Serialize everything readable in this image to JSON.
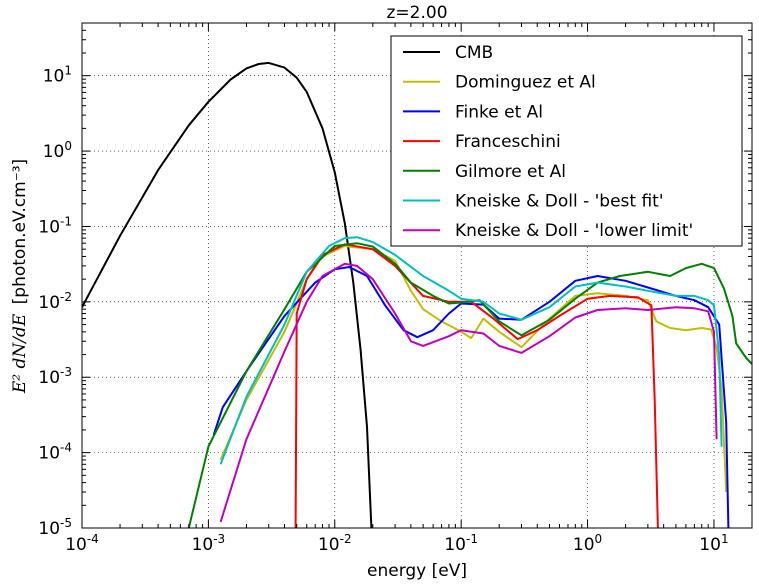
{
  "chart_data": {
    "type": "line",
    "title": "z=2.00",
    "xlabel": "energy [eV]",
    "ylabel_math": "E² dN/dE",
    "ylabel_unit": "[photon.eV.cm⁻³]",
    "xscale": "log",
    "yscale": "log",
    "xlim": [
      0.0001,
      20
    ],
    "ylim": [
      1e-05,
      50
    ],
    "grid": true,
    "legend_position": "top-right",
    "x_ticks": [
      {
        "base": "10",
        "exp": "-4",
        "value": 0.0001
      },
      {
        "base": "10",
        "exp": "-3",
        "value": 0.001
      },
      {
        "base": "10",
        "exp": "-2",
        "value": 0.01
      },
      {
        "base": "10",
        "exp": "-1",
        "value": 0.1
      },
      {
        "base": "10",
        "exp": "0",
        "value": 1
      },
      {
        "base": "10",
        "exp": "1",
        "value": 10
      }
    ],
    "y_ticks": [
      {
        "base": "10",
        "exp": "-5",
        "value": 1e-05
      },
      {
        "base": "10",
        "exp": "-4",
        "value": 0.0001
      },
      {
        "base": "10",
        "exp": "-3",
        "value": 0.001
      },
      {
        "base": "10",
        "exp": "-2",
        "value": 0.01
      },
      {
        "base": "10",
        "exp": "-1",
        "value": 0.1
      },
      {
        "base": "10",
        "exp": "0",
        "value": 1
      },
      {
        "base": "10",
        "exp": "1",
        "value": 10
      }
    ],
    "series": [
      {
        "name": "CMB",
        "color": "#000000",
        "points": [
          [
            0.0001,
            0.0085
          ],
          [
            0.0002,
            0.075
          ],
          [
            0.0004,
            0.56
          ],
          [
            0.0007,
            2.2
          ],
          [
            0.001,
            4.5
          ],
          [
            0.0015,
            8.9
          ],
          [
            0.002,
            12.5
          ],
          [
            0.0025,
            14.3
          ],
          [
            0.003,
            14.8
          ],
          [
            0.004,
            12.8
          ],
          [
            0.005,
            9.4
          ],
          [
            0.006,
            6.1
          ],
          [
            0.008,
            2.0
          ],
          [
            0.01,
            0.52
          ],
          [
            0.012,
            0.11
          ],
          [
            0.014,
            0.018
          ],
          [
            0.016,
            0.0023
          ],
          [
            0.018,
            0.00022
          ],
          [
            0.0195,
            1e-05
          ]
        ]
      },
      {
        "name": "Dominguez et Al",
        "color": "#bfbf00",
        "points": [
          [
            0.00125,
            8e-05
          ],
          [
            0.002,
            0.0005
          ],
          [
            0.004,
            0.004
          ],
          [
            0.006,
            0.02
          ],
          [
            0.008,
            0.04
          ],
          [
            0.012,
            0.055
          ],
          [
            0.02,
            0.05
          ],
          [
            0.03,
            0.035
          ],
          [
            0.04,
            0.014
          ],
          [
            0.05,
            0.008
          ],
          [
            0.07,
            0.0055
          ],
          [
            0.1,
            0.004
          ],
          [
            0.12,
            0.0033
          ],
          [
            0.15,
            0.006
          ],
          [
            0.2,
            0.004
          ],
          [
            0.3,
            0.0025
          ],
          [
            0.5,
            0.006
          ],
          [
            0.8,
            0.012
          ],
          [
            1.2,
            0.013
          ],
          [
            2,
            0.012
          ],
          [
            3,
            0.0105
          ],
          [
            3.5,
            0.0055
          ],
          [
            4.5,
            0.0045
          ],
          [
            6,
            0.0042
          ],
          [
            8,
            0.0045
          ],
          [
            9.5,
            0.0043
          ],
          [
            10.5,
            0.0025
          ],
          [
            11.5,
            0.0007
          ],
          [
            12.5,
            3e-05
          ]
        ]
      },
      {
        "name": "Finke et Al",
        "color": "#0000ff",
        "points": [
          [
            0.0011,
            0.00017
          ],
          [
            0.0013,
            0.0004
          ],
          [
            0.002,
            0.0012
          ],
          [
            0.004,
            0.0065
          ],
          [
            0.007,
            0.018
          ],
          [
            0.01,
            0.027
          ],
          [
            0.013,
            0.029
          ],
          [
            0.018,
            0.022
          ],
          [
            0.025,
            0.009
          ],
          [
            0.035,
            0.0042
          ],
          [
            0.045,
            0.0034
          ],
          [
            0.06,
            0.0042
          ],
          [
            0.08,
            0.007
          ],
          [
            0.1,
            0.0095
          ],
          [
            0.15,
            0.0092
          ],
          [
            0.2,
            0.006
          ],
          [
            0.3,
            0.0058
          ],
          [
            0.5,
            0.01
          ],
          [
            0.8,
            0.019
          ],
          [
            1.2,
            0.022
          ],
          [
            2,
            0.019
          ],
          [
            3,
            0.0155
          ],
          [
            5,
            0.012
          ],
          [
            7,
            0.0105
          ],
          [
            9,
            0.0085
          ],
          [
            11,
            0.005
          ],
          [
            12.5,
            0.00025
          ],
          [
            13,
            1e-05
          ]
        ]
      },
      {
        "name": "Franceschini",
        "color": "#ff0000",
        "points": [
          [
            0.0049,
            1e-05
          ],
          [
            0.005,
            0.007
          ],
          [
            0.006,
            0.02
          ],
          [
            0.008,
            0.042
          ],
          [
            0.012,
            0.058
          ],
          [
            0.02,
            0.05
          ],
          [
            0.03,
            0.03
          ],
          [
            0.05,
            0.012
          ],
          [
            0.08,
            0.01
          ],
          [
            0.12,
            0.01
          ],
          [
            0.18,
            0.006
          ],
          [
            0.28,
            0.0032
          ],
          [
            0.4,
            0.0042
          ],
          [
            0.6,
            0.0065
          ],
          [
            1,
            0.011
          ],
          [
            1.5,
            0.012
          ],
          [
            2.5,
            0.0115
          ],
          [
            3.2,
            0.009
          ],
          [
            3.4,
            0.0005
          ],
          [
            3.6,
            1e-05
          ]
        ]
      },
      {
        "name": "Gilmore et Al",
        "color": "#008000",
        "points": [
          [
            0.0007,
            1e-05
          ],
          [
            0.001,
            0.00012
          ],
          [
            0.002,
            0.0012
          ],
          [
            0.004,
            0.008
          ],
          [
            0.006,
            0.025
          ],
          [
            0.01,
            0.055
          ],
          [
            0.015,
            0.06
          ],
          [
            0.02,
            0.054
          ],
          [
            0.03,
            0.032
          ],
          [
            0.04,
            0.018
          ],
          [
            0.06,
            0.012
          ],
          [
            0.08,
            0.0095
          ],
          [
            0.1,
            0.0098
          ],
          [
            0.14,
            0.0105
          ],
          [
            0.2,
            0.0055
          ],
          [
            0.3,
            0.0036
          ],
          [
            0.5,
            0.0058
          ],
          [
            0.8,
            0.011
          ],
          [
            1.2,
            0.018
          ],
          [
            1.8,
            0.022
          ],
          [
            3,
            0.025
          ],
          [
            4.5,
            0.022
          ],
          [
            6,
            0.028
          ],
          [
            8,
            0.032
          ],
          [
            10,
            0.028
          ],
          [
            12,
            0.015
          ],
          [
            14,
            0.0065
          ],
          [
            15,
            0.0028
          ],
          [
            18,
            0.0018
          ],
          [
            20,
            0.0015
          ]
        ]
      },
      {
        "name": "Kneiske & Doll - 'best fit'",
        "color": "#00bfbf",
        "points": [
          [
            0.00125,
            7e-05
          ],
          [
            0.002,
            0.00055
          ],
          [
            0.004,
            0.005
          ],
          [
            0.006,
            0.025
          ],
          [
            0.009,
            0.055
          ],
          [
            0.012,
            0.07
          ],
          [
            0.015,
            0.072
          ],
          [
            0.02,
            0.062
          ],
          [
            0.03,
            0.042
          ],
          [
            0.05,
            0.022
          ],
          [
            0.08,
            0.014
          ],
          [
            0.1,
            0.011
          ],
          [
            0.15,
            0.01
          ],
          [
            0.2,
            0.007
          ],
          [
            0.3,
            0.0058
          ],
          [
            0.5,
            0.0085
          ],
          [
            0.8,
            0.016
          ],
          [
            1.2,
            0.018
          ],
          [
            2,
            0.016
          ],
          [
            3,
            0.014
          ],
          [
            5,
            0.012
          ],
          [
            7,
            0.012
          ],
          [
            9,
            0.0105
          ],
          [
            10,
            0.009
          ],
          [
            11,
            0.002
          ],
          [
            11.5,
            0.00012
          ]
        ]
      },
      {
        "name": "Kneiske & Doll - 'lower limit'",
        "color": "#bf00bf",
        "points": [
          [
            0.00125,
            1.2e-05
          ],
          [
            0.002,
            0.00015
          ],
          [
            0.004,
            0.0022
          ],
          [
            0.006,
            0.01
          ],
          [
            0.008,
            0.022
          ],
          [
            0.012,
            0.032
          ],
          [
            0.015,
            0.03
          ],
          [
            0.02,
            0.02
          ],
          [
            0.03,
            0.007
          ],
          [
            0.04,
            0.003
          ],
          [
            0.05,
            0.0026
          ],
          [
            0.08,
            0.0035
          ],
          [
            0.1,
            0.0042
          ],
          [
            0.15,
            0.0038
          ],
          [
            0.2,
            0.0026
          ],
          [
            0.3,
            0.0021
          ],
          [
            0.5,
            0.0035
          ],
          [
            0.8,
            0.0062
          ],
          [
            1.2,
            0.0078
          ],
          [
            2,
            0.0082
          ],
          [
            3,
            0.0078
          ],
          [
            5,
            0.0085
          ],
          [
            7,
            0.0082
          ],
          [
            9,
            0.0075
          ],
          [
            10,
            0.004
          ],
          [
            10.5,
            0.00015
          ]
        ]
      }
    ]
  }
}
